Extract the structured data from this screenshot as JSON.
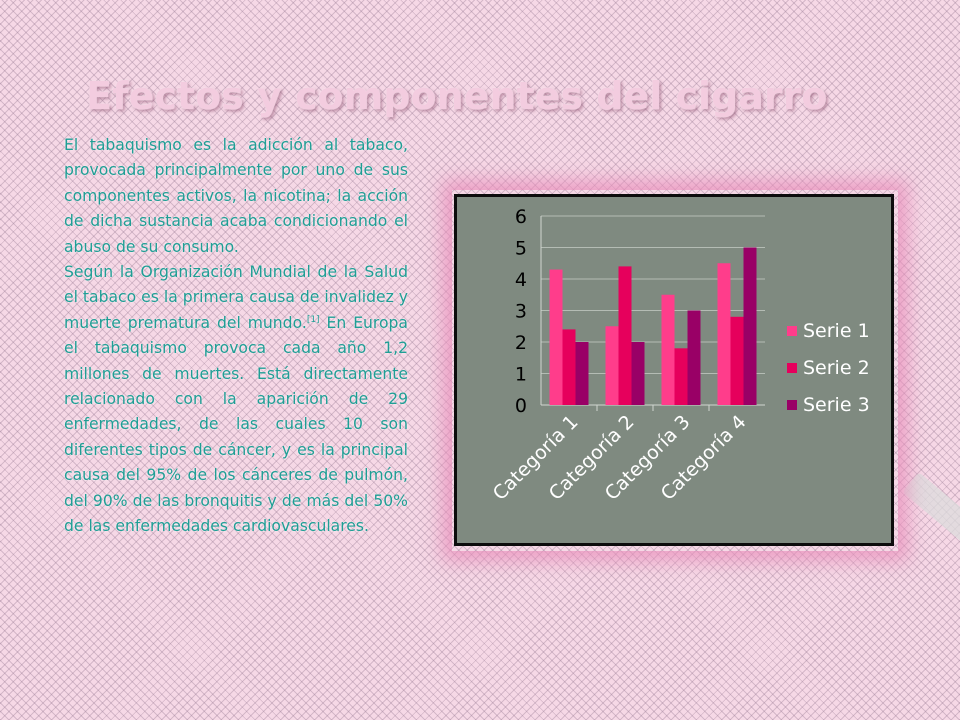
{
  "slide": {
    "title": "Efectos y componentes del cigarro",
    "para1": "El tabaquismo es la adicción al tabaco, provocada principalmente por uno de sus componentes activos, la nicotina; la acción de dicha sustancia acaba condicionando el abuso de su consumo.",
    "para2_main": "Según la Organización Mundial de la Salud el tabaco es la primera causa de invalidez y muerte prematura del mundo.",
    "para2_ref": "[1]",
    "para2_rest": " En Europa el tabaquismo provoca cada año 1,2 millones de muertes. Está directamente relacionado con la aparición de 29 enfermedades, de las cuales 10 son diferentes tipos de cáncer, y es la principal causa del 95% de los cánceres de pulmón, del 90% de las bronquitis y de más del 50% de las enfermedades cardiovasculares."
  },
  "chart_data": {
    "type": "bar",
    "categories": [
      "Categoría 1",
      "Categoría 2",
      "Categoría 3",
      "Categoría 4"
    ],
    "series": [
      {
        "name": "Serie 1",
        "values": [
          4.3,
          2.5,
          3.5,
          4.5
        ],
        "color": "#ff3d8b"
      },
      {
        "name": "Serie 2",
        "values": [
          2.4,
          4.4,
          1.8,
          2.8
        ],
        "color": "#e6005c"
      },
      {
        "name": "Serie 3",
        "values": [
          2.0,
          2.0,
          3.0,
          5.0
        ],
        "color": "#990066"
      }
    ],
    "ylim": [
      0,
      6
    ],
    "yticks": [
      0,
      1,
      2,
      3,
      4,
      5,
      6
    ],
    "grid": true,
    "legend": "right",
    "background": "#7f8a80",
    "text_color": "#ffffff",
    "tick_color": "#000000"
  }
}
